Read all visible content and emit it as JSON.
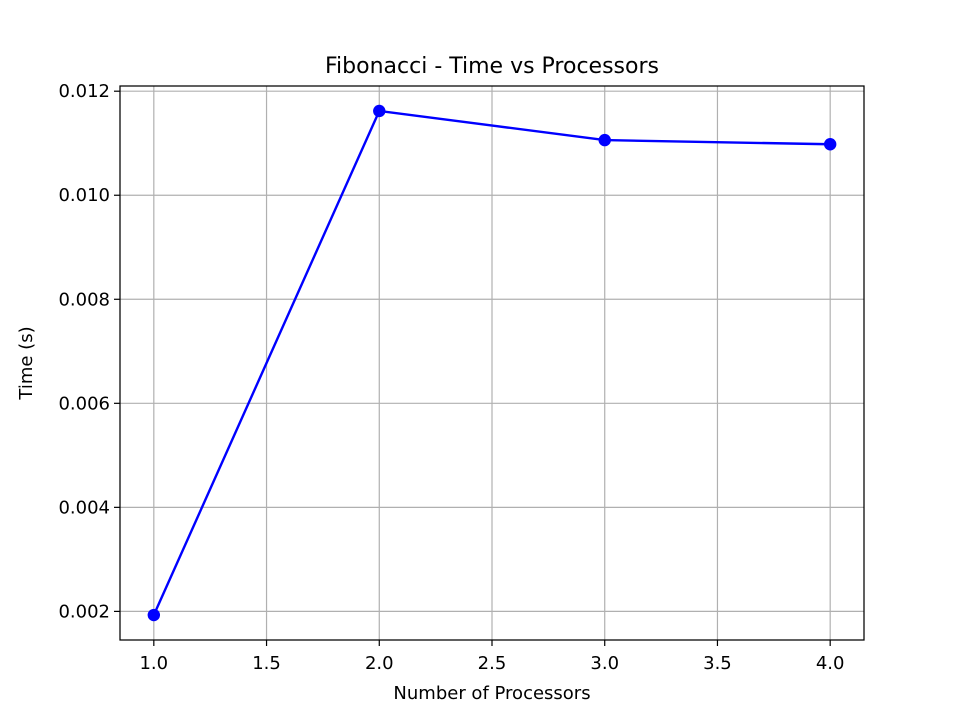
{
  "chart_data": {
    "type": "line",
    "title": "Fibonacci - Time vs Processors",
    "xlabel": "Number of Processors",
    "ylabel": "Time (s)",
    "x": [
      1,
      2,
      3,
      4
    ],
    "series": [
      {
        "values": [
          0.00193,
          0.01162,
          0.01106,
          0.01098
        ],
        "color": "#0000ff",
        "marker": "circle"
      }
    ],
    "xlim": [
      0.85,
      4.15
    ],
    "ylim": [
      0.00145,
      0.0121
    ],
    "xticks": [
      1.0,
      1.5,
      2.0,
      2.5,
      3.0,
      3.5,
      4.0
    ],
    "xtick_labels": [
      "1.0",
      "1.5",
      "2.0",
      "2.5",
      "3.0",
      "3.5",
      "4.0"
    ],
    "yticks": [
      0.002,
      0.004,
      0.006,
      0.008,
      0.01,
      0.012
    ],
    "ytick_labels": [
      "0.002",
      "0.004",
      "0.006",
      "0.008",
      "0.010",
      "0.012"
    ],
    "grid": true,
    "legend": false
  }
}
